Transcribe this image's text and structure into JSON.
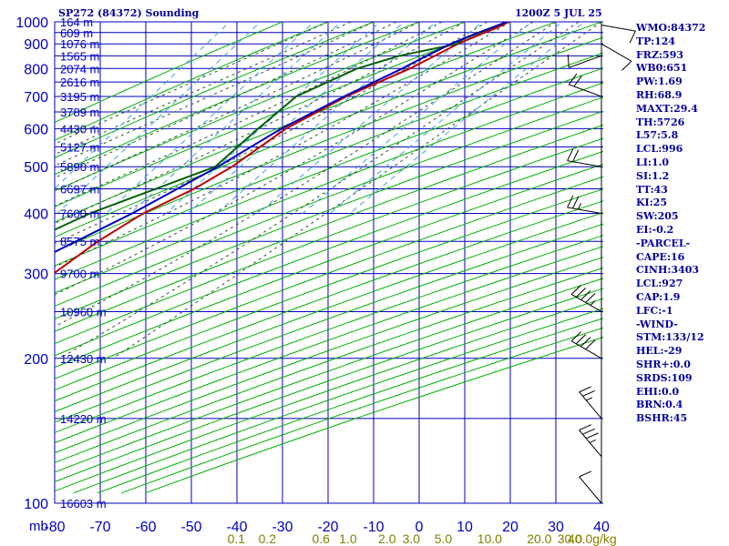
{
  "header": {
    "station": "SP272 (84372) Sounding",
    "valid": "1200Z  5 JUL 25"
  },
  "stats": [
    "WMO:84372",
    "TP:124",
    "FRZ:593",
    "WB0:651",
    "PW:1.69",
    "RH:68.9",
    "MAXT:29.4",
    "TH:5726",
    "L57:5.8",
    "LCL:996",
    "LI:1.0",
    "SI:1.2",
    "TT:43",
    "KI:25",
    "SW:205",
    "EI:-0.2",
    "-PARCEL-",
    "CAPE:16",
    "CINH:3403",
    "LCL:927",
    "CAP:1.9",
    "LFC:-1",
    "-WIND-",
    "STM:133/12",
    "HEL:-29",
    "SHR+:0.0",
    "SRDS:109",
    "EHI:0.0",
    "BRN:0.4",
    "BSHR:45"
  ],
  "colors": {
    "grid": "#0000c0",
    "dry_adiabat": "#00b000",
    "moist_adiabat": "#305030",
    "mixing_ratio": "#40a0e0",
    "temperature": "#c00000",
    "dewpoint": "#006000",
    "parcel": "#0000c0",
    "labels": "#0000c0",
    "mixing_labels": "#808000",
    "wind": "#000000"
  },
  "chart_data": {
    "type": "line",
    "title": "SP272 (84372) Sounding",
    "xlabel": "",
    "ylabel": "mb",
    "x_unit": "°C",
    "xlim": [
      -80,
      40
    ],
    "ylim": [
      1000,
      100
    ],
    "pressure_ticks": [
      100,
      200,
      300,
      400,
      500,
      600,
      700,
      800,
      900,
      1000
    ],
    "temp_ticks": [
      -80,
      -70,
      -60,
      -50,
      -40,
      -30,
      -20,
      -10,
      0,
      10,
      20,
      30,
      40
    ],
    "axis_corner_label": "mb",
    "mixing_ratio_labels": [
      "0.1",
      "0.2",
      "0.6",
      "1.0",
      "2.0",
      "3.0",
      "5.0",
      "10.0",
      "20.0",
      "30.0",
      "40.0"
    ],
    "mixing_unit": "g/kg",
    "heights": [
      {
        "p": 100,
        "label": "16603 m"
      },
      {
        "p": 150,
        "label": "14220 m"
      },
      {
        "p": 200,
        "label": "12430 m"
      },
      {
        "p": 250,
        "label": "10960 m"
      },
      {
        "p": 300,
        "label": "9700 m"
      },
      {
        "p": 350,
        "label": "8575 m"
      },
      {
        "p": 400,
        "label": "7600 m"
      },
      {
        "p": 450,
        "label": "6697 m"
      },
      {
        "p": 500,
        "label": "5890 m"
      },
      {
        "p": 550,
        "label": "5127 m"
      },
      {
        "p": 600,
        "label": "4430 m"
      },
      {
        "p": 650,
        "label": "3789 m"
      },
      {
        "p": 700,
        "label": "3195 m"
      },
      {
        "p": 750,
        "label": "2616 m"
      },
      {
        "p": 800,
        "label": "2074 m"
      },
      {
        "p": 850,
        "label": "1565 m"
      },
      {
        "p": 900,
        "label": "1076 m"
      },
      {
        "p": 950,
        "label": "609 m"
      },
      {
        "p": 1000,
        "label": "164 m"
      }
    ],
    "series": [
      {
        "key": "temperature",
        "points": [
          [
            1000,
            19.6
          ],
          [
            975,
            18.4
          ],
          [
            950,
            16.4
          ],
          [
            925,
            14.5
          ],
          [
            900,
            12.6
          ],
          [
            850,
            9.8
          ],
          [
            800,
            6.7
          ],
          [
            700,
            -2
          ],
          [
            600,
            -9.3
          ],
          [
            500,
            -14
          ],
          [
            450,
            -18.2
          ],
          [
            400,
            -24.8
          ],
          [
            350,
            -29.5
          ],
          [
            300,
            -33.2
          ],
          [
            250,
            -43.5
          ],
          [
            200,
            -54
          ],
          [
            150,
            -62.1
          ],
          [
            125,
            -68.5
          ],
          [
            115,
            -76.5
          ],
          [
            100,
            -48
          ]
        ]
      },
      {
        "key": "dewpoint",
        "points": [
          [
            1000,
            19.3
          ],
          [
            975,
            17.3
          ],
          [
            950,
            15
          ],
          [
            925,
            13
          ],
          [
            900,
            12.4
          ],
          [
            850,
            2
          ],
          [
            800,
            -4.9
          ],
          [
            700,
            -13
          ],
          [
            600,
            -15.4
          ],
          [
            500,
            -17.7
          ],
          [
            400,
            -36.5
          ],
          [
            350,
            -44.5
          ],
          [
            300,
            -50.1
          ],
          [
            250,
            -67.1
          ],
          [
            200,
            -73
          ],
          [
            175,
            -75.2
          ],
          [
            150,
            -78.5
          ],
          [
            130,
            -83
          ]
        ]
      },
      {
        "key": "parcel",
        "points": [
          [
            1000,
            19.3
          ],
          [
            975,
            17.2
          ],
          [
            950,
            15.1
          ],
          [
            925,
            13
          ],
          [
            900,
            11.1
          ],
          [
            850,
            8
          ],
          [
            800,
            5
          ],
          [
            700,
            -2.5
          ],
          [
            600,
            -10.3
          ],
          [
            500,
            -17.1
          ],
          [
            400,
            -27.2
          ],
          [
            300,
            -42.5
          ],
          [
            200,
            -64.5
          ],
          [
            150,
            -78.5
          ],
          [
            130,
            -85
          ]
        ]
      }
    ],
    "wind_barbs": [
      {
        "p": 985,
        "dir": 100,
        "speed": 8
      },
      {
        "p": 900,
        "dir": 120,
        "speed": 10
      },
      {
        "p": 850,
        "dir": 250,
        "speed": 10
      },
      {
        "p": 700,
        "dir": 290,
        "speed": 20
      },
      {
        "p": 500,
        "dir": 280,
        "speed": 20
      },
      {
        "p": 400,
        "dir": 280,
        "speed": 25
      },
      {
        "p": 250,
        "dir": 300,
        "speed": 45
      },
      {
        "p": 200,
        "dir": 300,
        "speed": 40
      },
      {
        "p": 150,
        "dir": 320,
        "speed": 25
      },
      {
        "p": 125,
        "dir": 320,
        "speed": 35
      },
      {
        "p": 100,
        "dir": 320,
        "speed": 10
      }
    ]
  }
}
